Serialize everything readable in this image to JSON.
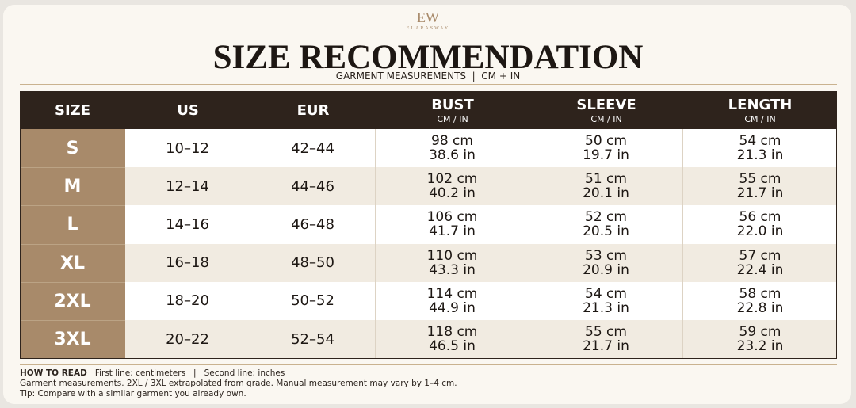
{
  "logo": {
    "monogram": "EW",
    "brand": "ELARASWAY"
  },
  "header": {
    "title": "SIZE RECOMMENDATION",
    "subtitle": "GARMENT MEASUREMENTS  |  CM + IN"
  },
  "table": {
    "columns": [
      {
        "label": "SIZE"
      },
      {
        "label": "US"
      },
      {
        "label": "EUR"
      },
      {
        "label": "BUST",
        "unit": "CM / IN"
      },
      {
        "label": "SLEEVE",
        "unit": "CM / IN"
      },
      {
        "label": "LENGTH",
        "unit": "CM / IN"
      }
    ],
    "rows": [
      [
        "S",
        "10–12",
        "42–44",
        [
          "98 cm",
          "38.6 in"
        ],
        [
          "50 cm",
          "19.7 in"
        ],
        [
          "54 cm",
          "21.3 in"
        ]
      ],
      [
        "M",
        "12–14",
        "44–46",
        [
          "102 cm",
          "40.2 in"
        ],
        [
          "51 cm",
          "20.1 in"
        ],
        [
          "55 cm",
          "21.7 in"
        ]
      ],
      [
        "L",
        "14–16",
        "46–48",
        [
          "106 cm",
          "41.7 in"
        ],
        [
          "52 cm",
          "20.5 in"
        ],
        [
          "56 cm",
          "22.0 in"
        ]
      ],
      [
        "XL",
        "16–18",
        "48–50",
        [
          "110 cm",
          "43.3 in"
        ],
        [
          "53 cm",
          "20.9 in"
        ],
        [
          "57 cm",
          "22.4 in"
        ]
      ],
      [
        "2XL",
        "18–20",
        "50–52",
        [
          "114 cm",
          "44.9 in"
        ],
        [
          "54 cm",
          "21.3 in"
        ],
        [
          "58 cm",
          "22.8 in"
        ]
      ],
      [
        "3XL",
        "20–22",
        "52–54",
        [
          "118 cm",
          "46.5 in"
        ],
        [
          "55 cm",
          "21.7 in"
        ],
        [
          "59 cm",
          "23.2 in"
        ]
      ]
    ]
  },
  "footer": {
    "how_to_read_label": "HOW TO READ",
    "how_to_read_text": "First line: centimeters   |   Second line: inches",
    "note": "Garment measurements. 2XL / 3XL extrapolated from grade. Manual measurement may vary by 1–4 cm.",
    "tip": "Tip: Compare with a similar garment you already own."
  }
}
